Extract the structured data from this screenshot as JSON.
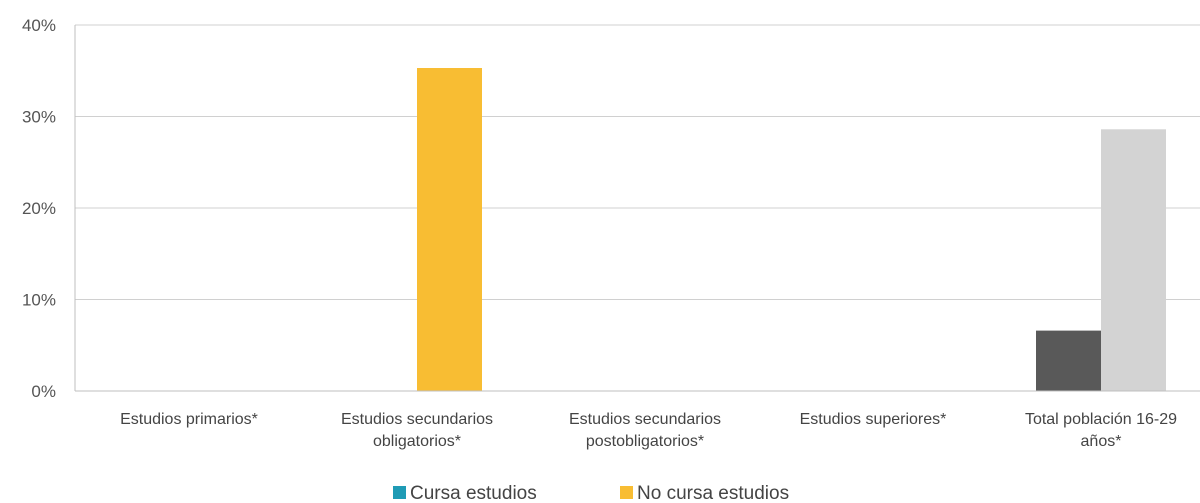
{
  "chart_data": {
    "type": "bar",
    "categories": [
      [
        "Estudios primarios*"
      ],
      [
        "Estudios secundarios",
        "obligatorios*"
      ],
      [
        "Estudios secundarios",
        "postobligatorios*"
      ],
      [
        "Estudios superiores*"
      ],
      [
        "Total población 16-29",
        "años*"
      ]
    ],
    "series": [
      {
        "name": "Cursa estudios",
        "color": "#1f9bb5",
        "values": [
          null,
          null,
          null,
          null,
          null
        ]
      },
      {
        "name": "No cursa estudios",
        "color": "#f8bd33",
        "values": [
          null,
          35.3,
          null,
          null,
          null
        ]
      }
    ],
    "total_bars": [
      {
        "category_index": 4,
        "value": 6.6,
        "color": "#595959"
      },
      {
        "category_index": 4,
        "value": 28.6,
        "color": "#d3d3d3"
      }
    ],
    "ylim": [
      0,
      40
    ],
    "yticks": [
      "0%",
      "10%",
      "20%",
      "30%",
      "40%"
    ],
    "ytick_values": [
      0,
      10,
      20,
      30,
      40
    ],
    "grid": true,
    "legend_position": "bottom-center",
    "title": "",
    "xlabel": "",
    "ylabel": ""
  }
}
